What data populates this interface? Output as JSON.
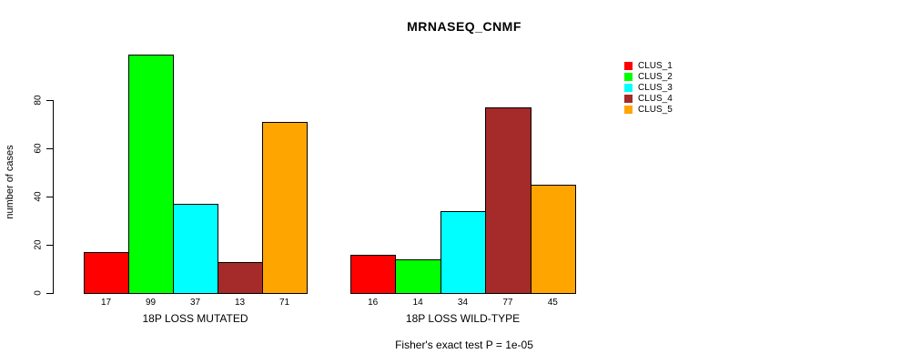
{
  "chart_data": {
    "type": "bar",
    "title": "MRNASEQ_CNMF",
    "ylabel": "number of cases",
    "xlabel": "",
    "yticks": [
      0,
      20,
      40,
      60,
      80
    ],
    "ylim": [
      0,
      103
    ],
    "grid": false,
    "legend_position": "right-outside-top",
    "series": [
      "CLUS_1",
      "CLUS_2",
      "CLUS_3",
      "CLUS_4",
      "CLUS_5"
    ],
    "colors": [
      "#FF0000",
      "#00FF00",
      "#00FFFF",
      "#A52A2A",
      "#FFA500"
    ],
    "groups": [
      {
        "label": "18P LOSS MUTATED",
        "values": [
          17,
          99,
          37,
          13,
          71
        ]
      },
      {
        "label": "18P LOSS WILD-TYPE",
        "values": [
          16,
          14,
          34,
          77,
          45
        ]
      }
    ],
    "bar_value_labels_shown": true,
    "annotation": "Fisher's exact test P = 1e-05"
  }
}
